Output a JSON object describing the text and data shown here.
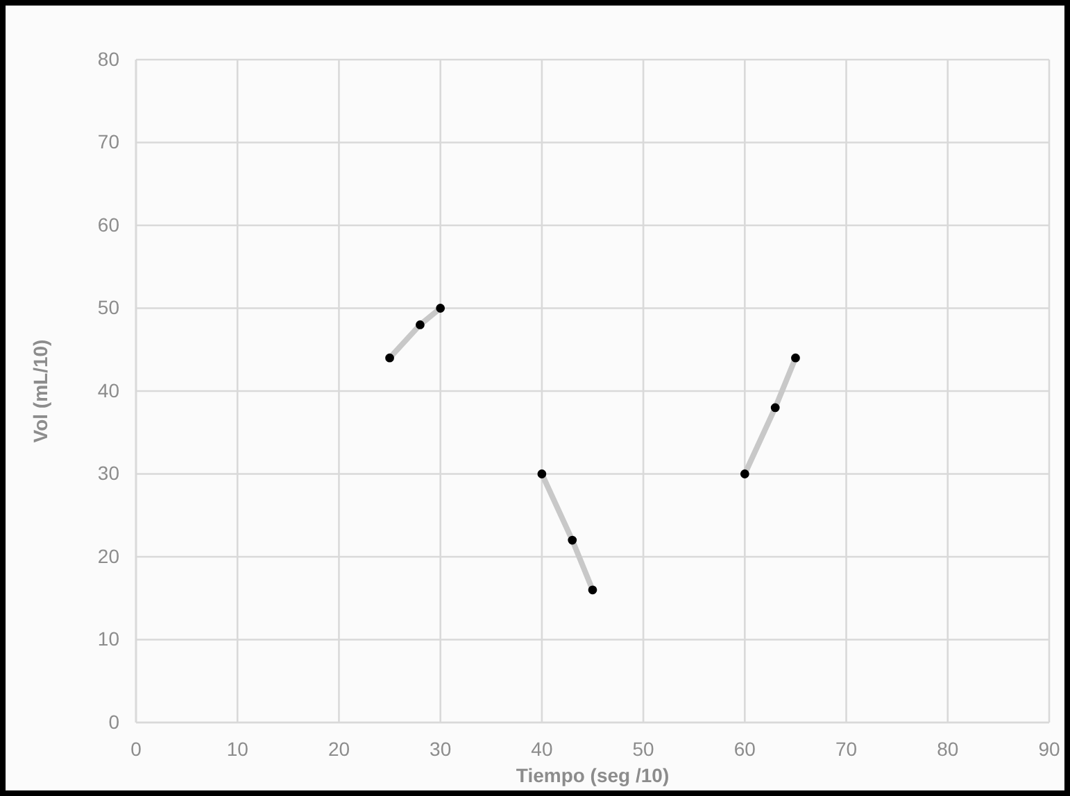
{
  "chart_data": {
    "type": "line",
    "xlabel": "Tiempo (seg /10)",
    "ylabel": "Vol (mL/10)",
    "xlim": [
      0,
      90
    ],
    "xticks": [
      0,
      10,
      20,
      30,
      40,
      50,
      60,
      70,
      80,
      90
    ],
    "ylim": [
      0,
      80
    ],
    "yticks": [
      0,
      10,
      20,
      30,
      40,
      50,
      60,
      70,
      80
    ],
    "grid": true,
    "marker": "circle",
    "line_style": "solid",
    "series": [
      {
        "color": "#c8c8c8",
        "x": [
          25,
          28,
          30
        ],
        "values": [
          44,
          48,
          50
        ]
      },
      {
        "color": "#c8c8c8",
        "x": [
          40,
          43,
          45
        ],
        "values": [
          30,
          22,
          16
        ]
      },
      {
        "color": "#c8c8c8",
        "x": [
          60,
          63,
          65
        ],
        "values": [
          30,
          38,
          44
        ]
      }
    ]
  }
}
